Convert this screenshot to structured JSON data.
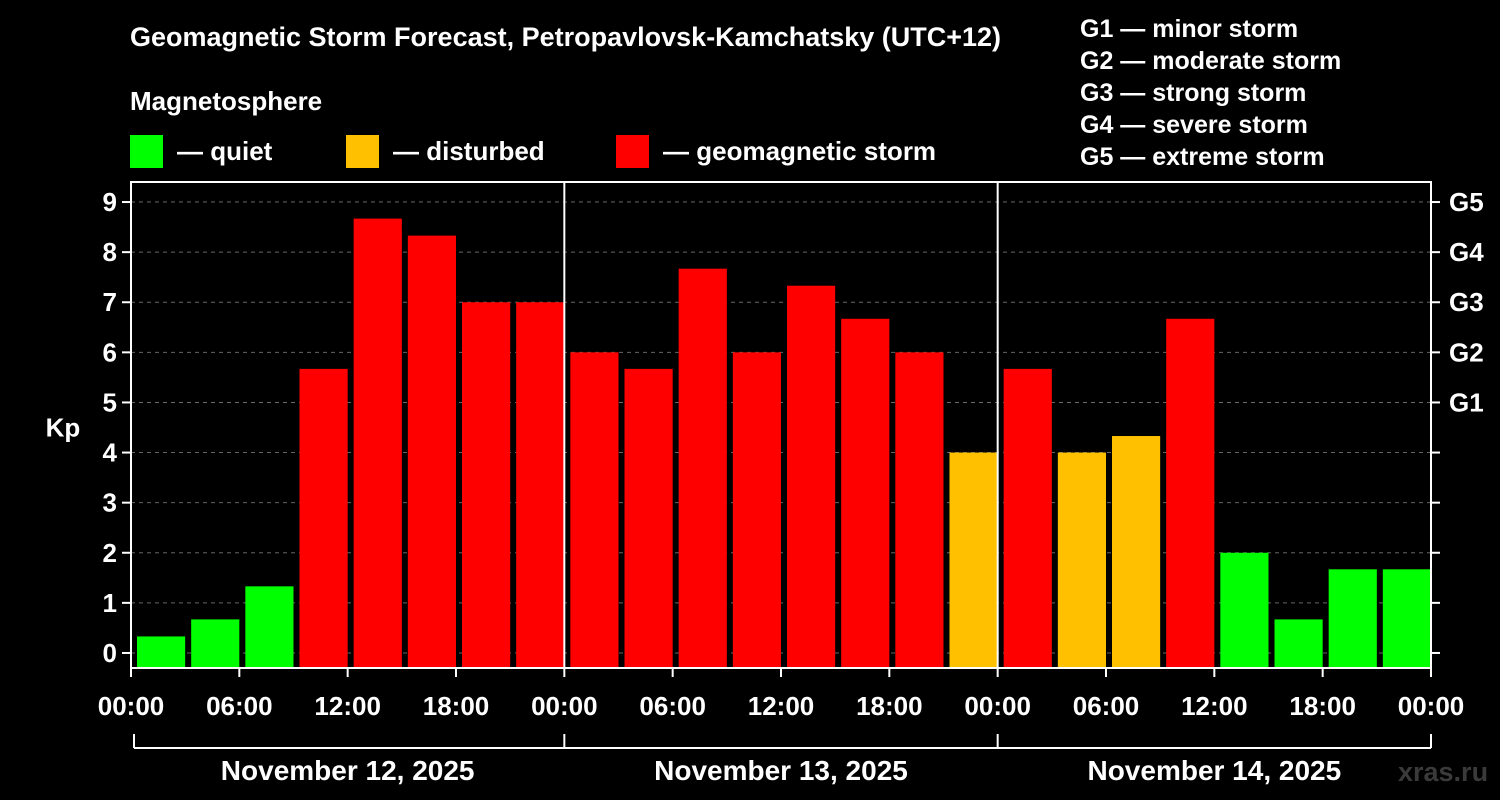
{
  "chart_data": {
    "type": "bar",
    "title": "Geomagnetic Storm Forecast, Petropavlovsk-Kamchatsky (UTC+12)",
    "subtitle": "Magnetosphere",
    "ylabel": "Kp",
    "ylim": [
      -0.3,
      9.4
    ],
    "yticks": [
      "0",
      "1",
      "2",
      "3",
      "4",
      "5",
      "6",
      "7",
      "8",
      "9"
    ],
    "right_ticks": [
      {
        "kp": 5,
        "label": "G1"
      },
      {
        "kp": 6,
        "label": "G2"
      },
      {
        "kp": 7,
        "label": "G3"
      },
      {
        "kp": 8,
        "label": "G4"
      },
      {
        "kp": 9,
        "label": "G5"
      }
    ],
    "grid": true,
    "legend": [
      {
        "color": "#00ff00",
        "label": "— quiet"
      },
      {
        "color": "#ffc000",
        "label": "— disturbed"
      },
      {
        "color": "#ff0000",
        "label": "— geomagnetic storm"
      }
    ],
    "storm_levels": [
      "G1 — minor storm",
      "G2 — moderate storm",
      "G3 — strong storm",
      "G4 — severe storm",
      "G5 — extreme storm"
    ],
    "colors": {
      "quiet": "#00ff00",
      "disturbed": "#ffc000",
      "storm": "#ff0000"
    },
    "xtick_labels": [
      "00:00",
      "06:00",
      "12:00",
      "18:00",
      "00:00",
      "06:00",
      "12:00",
      "18:00",
      "00:00",
      "06:00",
      "12:00",
      "18:00",
      "00:00"
    ],
    "days": [
      "November 12, 2025",
      "November 13, 2025",
      "November 14, 2025"
    ],
    "values": [
      0.33,
      0.67,
      1.33,
      5.67,
      8.67,
      8.33,
      7.0,
      7.0,
      6.0,
      5.67,
      7.67,
      6.0,
      7.33,
      6.67,
      6.0,
      4.0,
      5.67,
      4.0,
      4.33,
      6.67,
      2.0,
      0.67,
      1.67,
      1.67
    ]
  },
  "watermark": "xras.ru"
}
